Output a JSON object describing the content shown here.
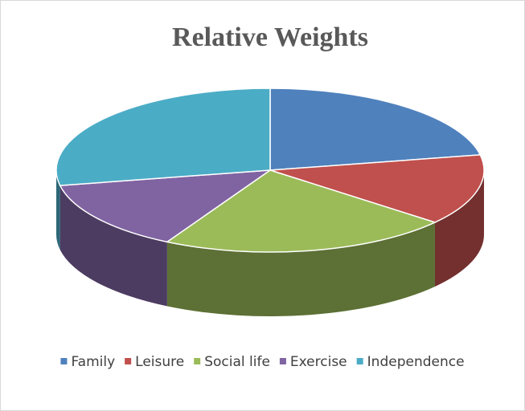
{
  "chart_data": {
    "type": "pie3d",
    "title": "Relative Weights",
    "categories": [
      "Family",
      "Leisure",
      "Social life",
      "Exercise",
      "Independence"
    ],
    "values": [
      22,
      14,
      22,
      14,
      28
    ],
    "colors": [
      "#4f81bd",
      "#c0504d",
      "#9bbb59",
      "#8064a2",
      "#4bacc6"
    ],
    "legend": "bottom"
  }
}
